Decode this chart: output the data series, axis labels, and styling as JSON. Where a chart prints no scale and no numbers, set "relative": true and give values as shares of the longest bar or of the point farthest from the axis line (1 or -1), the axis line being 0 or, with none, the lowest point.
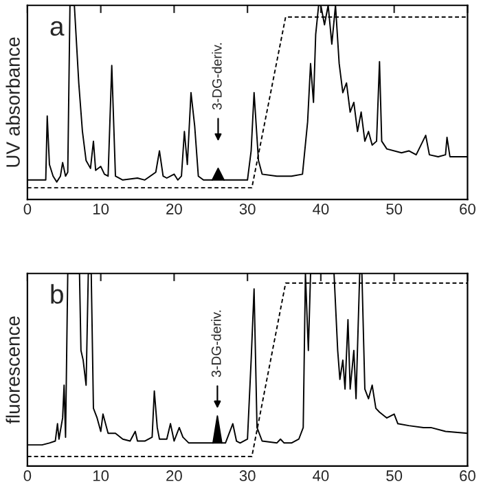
{
  "chart_data": [
    {
      "type": "line",
      "relative": true,
      "ylabel": "UV absorbance",
      "xlim": [
        0,
        60
      ],
      "xticks": [
        0,
        10,
        20,
        30,
        40,
        50,
        60
      ],
      "annotations": [
        "a",
        "3-DG-deriv."
      ],
      "series": [
        {
          "color": "#000000",
          "line_style": "solid",
          "x": [
            0,
            2.5,
            2.7,
            3,
            3.5,
            4,
            4.5,
            4.8,
            5.2,
            5.5,
            5.8,
            6.4,
            7.0,
            7.5,
            8,
            8.6,
            9,
            9.3,
            10,
            10.5,
            11,
            11.5,
            12,
            13,
            15,
            16,
            17.5,
            18,
            18.5,
            19,
            20,
            20.5,
            21,
            21.4,
            21.8,
            22.3,
            22.8,
            23.3,
            24,
            26,
            28,
            30,
            30.5,
            30.9,
            31.5,
            32,
            34,
            36,
            37.5,
            38.2,
            38.6,
            39,
            39.3,
            39.7,
            40,
            40.5,
            41,
            41.5,
            42,
            42.5,
            43,
            43.5,
            44,
            44.5,
            45,
            45.5,
            46,
            46.5,
            47,
            47.6,
            48,
            48.3,
            49,
            51,
            52,
            53,
            54.3,
            54.8,
            56,
            57,
            57.2,
            57.6,
            60
          ],
          "values": [
            0.1,
            0.1,
            0.43,
            0.18,
            0.12,
            0.09,
            0.12,
            0.19,
            0.12,
            0.14,
            1.0,
            1.0,
            0.6,
            0.35,
            0.2,
            0.16,
            0.3,
            0.15,
            0.17,
            0.13,
            0.12,
            0.69,
            0.12,
            0.1,
            0.11,
            0.1,
            0.14,
            0.25,
            0.12,
            0.11,
            0.13,
            0.1,
            0.12,
            0.35,
            0.18,
            0.55,
            0.38,
            0.12,
            0.1,
            0.1,
            0.1,
            0.1,
            0.25,
            0.55,
            0.2,
            0.13,
            0.12,
            0.12,
            0.13,
            0.4,
            0.7,
            0.5,
            0.85,
            1.0,
            1.0,
            0.9,
            1.0,
            0.8,
            1.0,
            0.7,
            0.55,
            0.6,
            0.45,
            0.5,
            0.35,
            0.45,
            0.3,
            0.35,
            0.28,
            0.3,
            0.71,
            0.3,
            0.26,
            0.24,
            0.25,
            0.23,
            0.33,
            0.23,
            0.22,
            0.23,
            0.32,
            0.22,
            0.22
          ]
        },
        {
          "type": "area",
          "color": "#000000",
          "line_style": "solid",
          "x": [
            25.2,
            26,
            26.8
          ],
          "values": [
            0.1,
            0.16,
            0.1
          ]
        },
        {
          "color": "#000000",
          "line_style": "dashed",
          "x": [
            0,
            30.6,
            35.2,
            60
          ],
          "values": [
            0.06,
            0.06,
            0.94,
            0.94
          ]
        }
      ]
    },
    {
      "type": "line",
      "relative": true,
      "ylabel": "fluorescence",
      "xlim": [
        0,
        60
      ],
      "xticks": [
        0,
        10,
        20,
        30,
        40,
        50,
        60
      ],
      "annotations": [
        "b",
        "3-DG-deriv."
      ],
      "series": [
        {
          "color": "#000000",
          "line_style": "solid",
          "x": [
            0,
            2,
            3,
            3.8,
            4.1,
            4.3,
            4.8,
            5.0,
            5.2,
            5.5,
            7.1,
            7.3,
            7.6,
            8,
            8.3,
            8.7,
            9,
            9.5,
            10,
            10.3,
            11,
            12,
            13,
            14,
            14.7,
            15,
            16,
            17,
            17.3,
            17.7,
            18,
            19,
            19.5,
            20,
            20.7,
            21.2,
            22,
            24,
            25,
            27,
            28,
            28.5,
            29,
            30,
            30.5,
            30.9,
            31.3,
            32,
            34,
            34.5,
            35,
            36,
            37,
            37.6,
            37.9,
            38.3,
            38.6,
            39.2,
            39.5,
            41.8,
            42.3,
            42.6,
            43,
            43.3,
            43.7,
            44,
            44.5,
            44.8,
            45.3,
            45.6,
            46,
            46.5,
            47,
            47.5,
            48,
            49,
            50,
            50.5,
            52,
            54,
            55,
            57,
            60
          ],
          "values": [
            0.11,
            0.11,
            0.12,
            0.13,
            0.22,
            0.14,
            0.25,
            0.42,
            0.15,
            1.0,
            1.0,
            0.6,
            0.55,
            0.42,
            1.0,
            1.0,
            0.3,
            0.25,
            0.18,
            0.27,
            0.17,
            0.17,
            0.14,
            0.13,
            0.18,
            0.13,
            0.13,
            0.15,
            0.39,
            0.2,
            0.14,
            0.14,
            0.22,
            0.13,
            0.2,
            0.15,
            0.12,
            0.12,
            0.12,
            0.12,
            0.22,
            0.13,
            0.12,
            0.14,
            0.55,
            0.92,
            0.2,
            0.13,
            0.12,
            0.14,
            0.12,
            0.12,
            0.14,
            0.2,
            1.0,
            0.6,
            1.0,
            1.0,
            1.0,
            1.0,
            0.6,
            0.45,
            0.55,
            0.4,
            0.76,
            0.4,
            0.6,
            0.35,
            1.0,
            1.0,
            0.4,
            0.35,
            0.42,
            0.3,
            0.28,
            0.25,
            0.27,
            0.22,
            0.21,
            0.2,
            0.2,
            0.18,
            0.17
          ]
        },
        {
          "type": "area",
          "color": "#000000",
          "line_style": "solid",
          "x": [
            25.3,
            25.9,
            26.5
          ],
          "values": [
            0.12,
            0.26,
            0.12
          ]
        },
        {
          "color": "#000000",
          "line_style": "dashed",
          "x": [
            0,
            30.6,
            35.2,
            60
          ],
          "values": [
            0.05,
            0.05,
            0.95,
            0.95
          ]
        }
      ]
    }
  ]
}
